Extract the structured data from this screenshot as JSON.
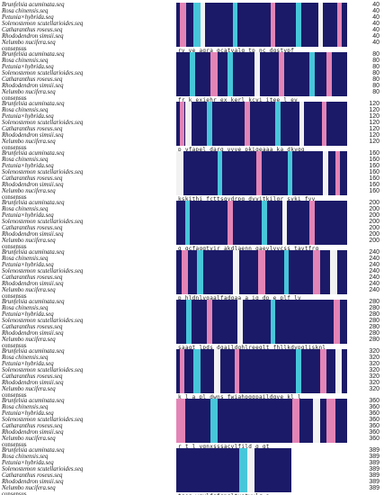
{
  "species": [
    "Brunfelsia acuminata.seq",
    "Rosa chinensis.seq",
    "Petunia×hybrida.seq",
    "Solenostemon scutellarioides.seq",
    "Catharanthus roseus.seq",
    "Rhododendron simsii.seq",
    "Nelumbo nucifera.seq"
  ],
  "consensus_label": "consensus",
  "colors": {
    "identical": "#1b1a68",
    "high": "#e384b6",
    "medium": "#47c6da",
    "background": "#ffffff"
  },
  "blocks": [
    {
      "end": "40",
      "numbers": [
        "40",
        "40",
        "40",
        "40",
        "40",
        "40",
        "40"
      ],
      "consensus": "rv ve  agra gcatvalq tp nc dqstypf"
    },
    {
      "end": "80",
      "numbers": [
        "80",
        "80",
        "80",
        "80",
        "80",
        "80",
        "80"
      ],
      "consensus": "fr k exiehr  ex  kerl kcyi  itee l ev"
    },
    {
      "end": "120",
      "numbers": [
        "120",
        "120",
        "120",
        "120",
        "120",
        "120",
        "120"
      ],
      "consensus": "p  yfapel darq  vvve pkiqeaaa ka dkvgg"
    },
    {
      "end": "160",
      "numbers": [
        "160",
        "160",
        "160",
        "160",
        "160",
        "160",
        "160"
      ],
      "consensus": "kskithi fcttsqvdrpq dvyitkilgr  svki fvy"
    },
    {
      "end": "200",
      "numbers": [
        "200",
        "200",
        "200",
        "200",
        "200",
        "200",
        "200"
      ],
      "consensus": "g qcfaqgtvir akdlaenn gaevlvvcss tavtfrg"
    },
    {
      "end": "240",
      "numbers": [
        "240",
        "240",
        "240",
        "240",
        "240",
        "240",
        "240"
      ],
      "consensus": "p  hldnlvgaalfadgaa a ig dp     e plf lv"
    },
    {
      "end": "280",
      "numbers": [
        "280",
        "280",
        "280",
        "280",
        "280",
        "280",
        "280"
      ],
      "consensus": "saaqt lpds dgaildghlreeglt fhllkdvpglisknl"
    },
    {
      "end": "320",
      "numbers": [
        "320",
        "320",
        "320",
        "320",
        "320",
        "320",
        "320"
      ],
      "consensus": "k  l a  pl   dwns  fwiahpggpaildqve kl l"
    },
    {
      "end": "360",
      "numbers": [
        "360",
        "360",
        "360",
        "360",
        "360",
        "360",
        "360"
      ],
      "consensus": "r    t l   ygnxsssacvlfild        g    gt"
    },
    {
      "end": "389",
      "numbers": [
        "389",
        "389",
        "389",
        "389",
        "389",
        "389",
        "389"
      ],
      "consensus": "tgeg  wgvlfgfgpgltvetvvlr a"
    }
  ]
}
